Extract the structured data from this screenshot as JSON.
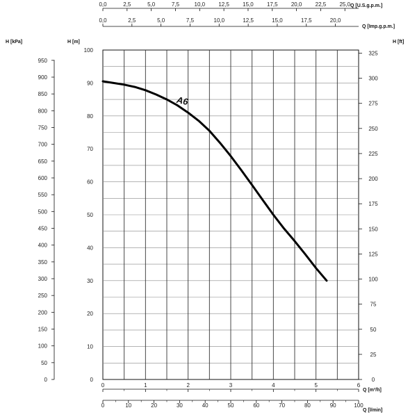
{
  "chart_data": {
    "type": "line",
    "series": [
      {
        "name": "A6",
        "x": [
          0,
          0.25,
          0.5,
          0.75,
          1.0,
          1.25,
          1.5,
          1.75,
          2.0,
          2.25,
          2.5,
          2.75,
          3.0,
          3.25,
          3.5,
          3.75,
          4.0,
          4.25,
          4.5,
          4.75,
          5.0,
          5.25
        ],
        "y": [
          90.5,
          90.0,
          89.5,
          88.8,
          87.8,
          86.5,
          85.0,
          83.2,
          81.0,
          78.5,
          75.5,
          71.8,
          67.8,
          63.5,
          59.0,
          54.5,
          50.0,
          45.8,
          42.0,
          38.0,
          33.8,
          30.0
        ]
      }
    ],
    "axes": {
      "left_outer": {
        "label": "H [kPa]",
        "ticks": [
          "0",
          "50",
          "100",
          "150",
          "200",
          "250",
          "300",
          "350",
          "400",
          "450",
          "500",
          "550",
          "600",
          "650",
          "700",
          "750",
          "800",
          "850",
          "900",
          "950"
        ]
      },
      "left_inner": {
        "label": "H [m]",
        "ticks": [
          "0",
          "10",
          "20",
          "30",
          "40",
          "50",
          "60",
          "70",
          "80",
          "90",
          "100"
        ],
        "ylim": [
          0,
          100
        ]
      },
      "right": {
        "label": "H [ft]",
        "ticks": [
          "0",
          "25",
          "50",
          "75",
          "100",
          "125",
          "150",
          "175",
          "200",
          "225",
          "250",
          "275",
          "300",
          "325"
        ]
      },
      "top_usgpm": {
        "label": "Q [U.S.g.p.m.]",
        "ticks": [
          "0,0",
          "2,5",
          "5,0",
          "7,5",
          "10,0",
          "12,5",
          "15,0",
          "17,5",
          "20,0",
          "22,5",
          "25,0"
        ]
      },
      "top_impgpm": {
        "label": "Q [Imp.g.p.m.]",
        "ticks": [
          "0,0",
          "2,5",
          "5,0",
          "7,5",
          "10,0",
          "12,5",
          "15,0",
          "17,5",
          "20,0"
        ]
      },
      "bottom_m3h": {
        "label": "Q [m³/h]",
        "ticks": [
          "0",
          "1",
          "2",
          "3",
          "4",
          "5",
          "6"
        ],
        "xlim": [
          0,
          6
        ]
      },
      "bottom_lmin": {
        "label": "Q [l/min]",
        "ticks": [
          "0",
          "10",
          "20",
          "30",
          "40",
          "50",
          "60",
          "70",
          "80",
          "90",
          "100"
        ]
      }
    },
    "grid": true
  }
}
